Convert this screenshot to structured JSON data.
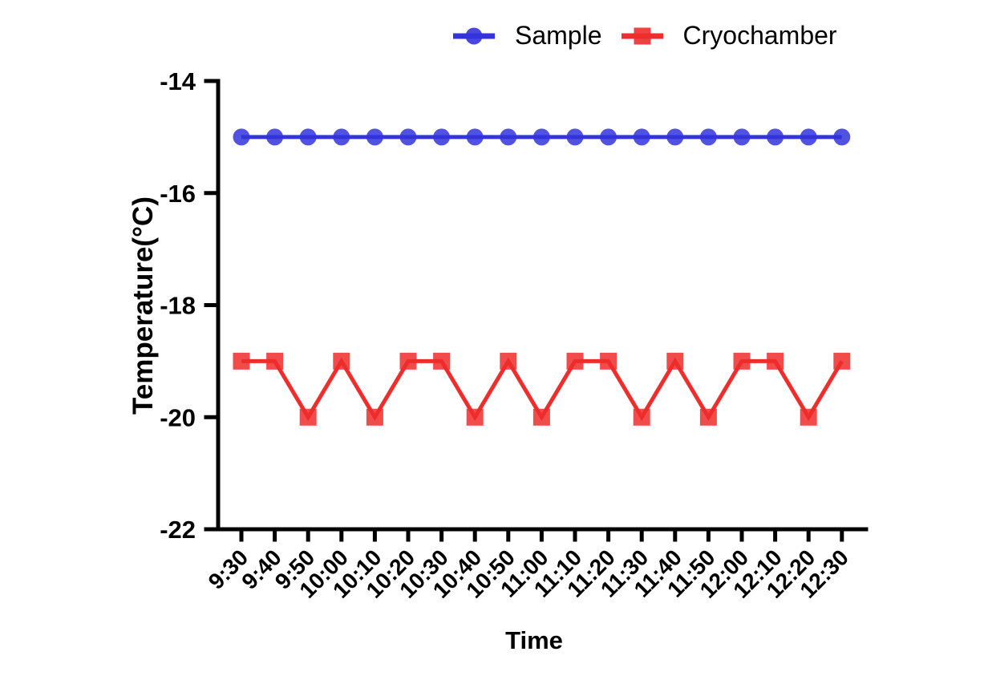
{
  "chart_data": {
    "type": "line",
    "title": "",
    "xlabel": "Time",
    "ylabel": "Temperature(°C)",
    "categories": [
      "9:30",
      "9:40",
      "9:50",
      "10:00",
      "10:10",
      "10:20",
      "10:30",
      "10:40",
      "10:50",
      "11:00",
      "11:10",
      "11:20",
      "11:30",
      "11:40",
      "11:50",
      "12:00",
      "12:10",
      "12:20",
      "12:30"
    ],
    "yticks": [
      -14,
      -16,
      -18,
      -20,
      -22
    ],
    "ylim": [
      -22,
      -14
    ],
    "grid": false,
    "legend_position": "top",
    "axis_color": "#000000",
    "text_color": "#000000",
    "series": [
      {
        "name": "Sample",
        "marker": "circle",
        "color": "#3434DC",
        "values": [
          -15,
          -15,
          -15,
          -15,
          -15,
          -15,
          -15,
          -15,
          -15,
          -15,
          -15,
          -15,
          -15,
          -15,
          -15,
          -15,
          -15,
          -15,
          -15
        ]
      },
      {
        "name": "Cryochamber",
        "marker": "square",
        "color": "#EE2D2D",
        "values": [
          -19,
          -19,
          -20,
          -19,
          -20,
          -19,
          -19,
          -20,
          -19,
          -20,
          -19,
          -19,
          -20,
          -19,
          -20,
          -19,
          -19,
          -20,
          -19
        ]
      }
    ]
  }
}
